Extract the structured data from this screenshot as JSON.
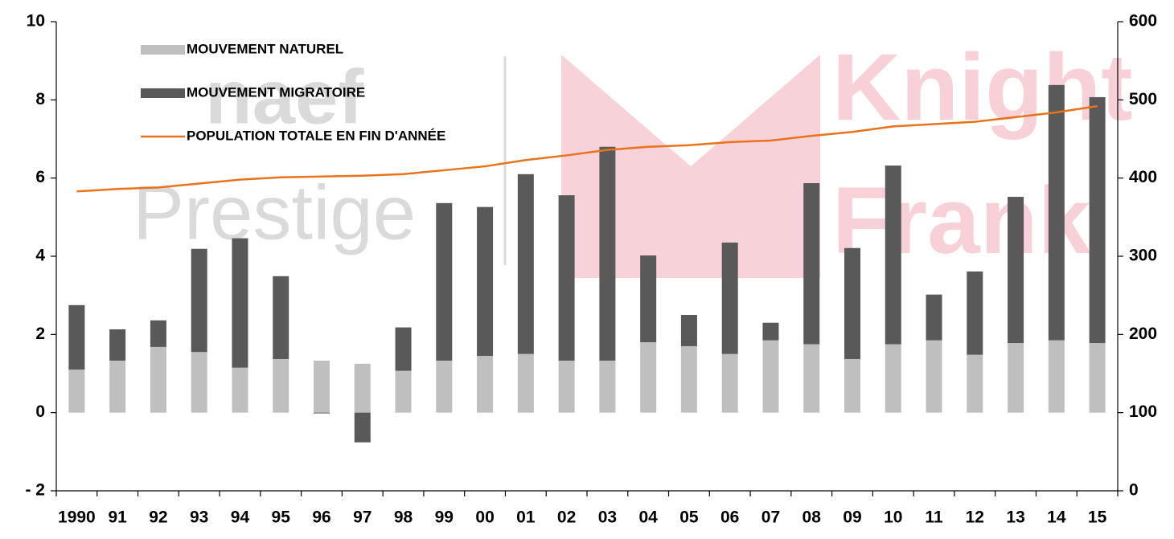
{
  "chart_data": {
    "type": "bar",
    "watermarks": [
      "naef",
      "Prestige",
      "Knight",
      "Frank"
    ],
    "categories": [
      "1990",
      "91",
      "92",
      "93",
      "94",
      "95",
      "96",
      "97",
      "98",
      "99",
      "00",
      "01",
      "02",
      "03",
      "04",
      "05",
      "06",
      "07",
      "08",
      "09",
      "10",
      "11",
      "12",
      "13",
      "14",
      "15"
    ],
    "series": [
      {
        "name": "MOUVEMENT NATUREL",
        "color": "#bfbfbf",
        "values": [
          1.1,
          1.33,
          1.68,
          1.55,
          1.15,
          1.37,
          1.33,
          1.25,
          1.07,
          1.33,
          1.45,
          1.5,
          1.33,
          1.33,
          1.8,
          1.7,
          1.5,
          1.85,
          1.75,
          1.37,
          1.75,
          1.85,
          1.48,
          1.78,
          1.85,
          1.78
        ]
      },
      {
        "name": "MOUVEMENT MIGRATOIRE",
        "color": "#595959",
        "values": [
          1.65,
          0.8,
          0.68,
          2.64,
          3.31,
          2.12,
          -0.02,
          -0.76,
          1.11,
          4.03,
          3.81,
          4.6,
          4.23,
          5.47,
          2.22,
          0.8,
          2.85,
          0.45,
          4.12,
          2.84,
          4.57,
          1.17,
          2.13,
          3.74,
          6.53,
          6.29
        ]
      },
      {
        "name": "POPULATION TOTALE EN FIN D'ANNÉE",
        "color": "#e8731a",
        "type": "line",
        "axis": "y2",
        "values": [
          383,
          386,
          388,
          393,
          398,
          401,
          402,
          403,
          405,
          410,
          415,
          423,
          429,
          436,
          440,
          442,
          446,
          448,
          454,
          459,
          466,
          469,
          472,
          478,
          484,
          492
        ]
      }
    ],
    "ylim": [
      -2,
      10
    ],
    "yticks": [
      {
        "value": -2,
        "label": "- 2"
      },
      0,
      2,
      4,
      6,
      8,
      10
    ],
    "y2lim": [
      0,
      600
    ],
    "y2ticks": [
      0,
      100,
      200,
      300,
      400,
      500,
      600
    ],
    "stacked": true,
    "legend": "top-left"
  }
}
